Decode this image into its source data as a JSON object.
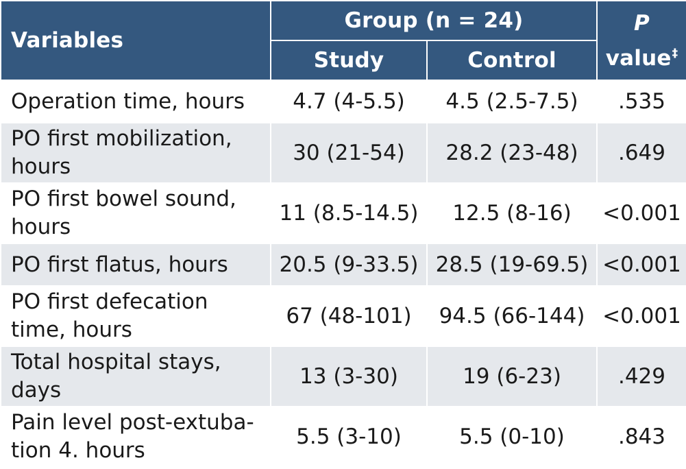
{
  "header": {
    "variables": "Variables",
    "group": "Group (n = 24)",
    "study": "Study",
    "control": "Control",
    "p_value_italic": "P",
    "p_value_text": "value",
    "p_value_footnote_mark": "‡"
  },
  "rows": [
    {
      "variable": "Operation time, hours",
      "study": "4.7 (4-5.5)",
      "control": "4.5 (2.5-7.5)",
      "p": ".535"
    },
    {
      "variable": "PO first mobilization, hours",
      "study": "30 (21-54)",
      "control": "28.2 (23-48)",
      "p": ".649"
    },
    {
      "variable": "PO first bowel sound, hours",
      "study": "11 (8.5-14.5)",
      "control": "12.5 (8-16)",
      "p": "<0.001"
    },
    {
      "variable": "PO first flatus, hours",
      "study": "20.5 (9-33.5)",
      "control": "28.5 (19-69.5)",
      "p": "<0.001"
    },
    {
      "variable": "PO first defecation time, hours",
      "study": "67 (48-101)",
      "control": "94.5 (66-144)",
      "p": "<0.001"
    },
    {
      "variable": "Total hospital stays, days",
      "study": "13 (3-30)",
      "control": "19 (6-23)",
      "p": ".429"
    },
    {
      "variable": "Pain level post-extuba-tion 4. hours",
      "study": "5.5 (3-10)",
      "control": "5.5 (0-10)",
      "p": ".843"
    }
  ],
  "colors": {
    "header_bg": "#34587f",
    "header_text": "#ffffff",
    "row_alt_bg": "#e5e8ec",
    "row_bg": "#ffffff"
  }
}
